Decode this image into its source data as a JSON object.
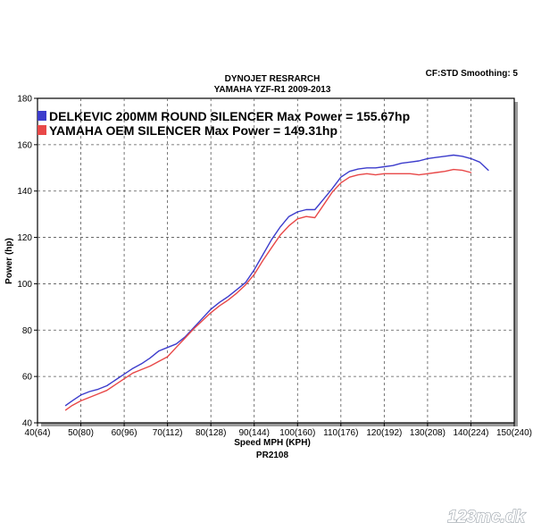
{
  "chart_data": {
    "type": "line",
    "title": [
      "DYNOJET RESRARCH",
      "YAMAHA YZF-R1 2009-2013"
    ],
    "header_right": "CF:STD Smoothing: 5",
    "xlabel": "Speed MPH (KPH)",
    "xlabel2": "PR2108",
    "ylabel": "Power (hp)",
    "xlim": [
      40,
      150
    ],
    "ylim": [
      40,
      180
    ],
    "x_ticks": [
      {
        "value": 40,
        "label": "40(64)"
      },
      {
        "value": 50,
        "label": "50(80)"
      },
      {
        "value": 60,
        "label": "60(96)"
      },
      {
        "value": 70,
        "label": "70(112)"
      },
      {
        "value": 80,
        "label": "80(128)"
      },
      {
        "value": 90,
        "label": "90(144)"
      },
      {
        "value": 100,
        "label": "100(160)"
      },
      {
        "value": 110,
        "label": "110(176)"
      },
      {
        "value": 120,
        "label": "120(192)"
      },
      {
        "value": 130,
        "label": "130(208)"
      },
      {
        "value": 140,
        "label": "140(224)"
      },
      {
        "value": 150,
        "label": "150(240)"
      }
    ],
    "y_ticks": [
      {
        "value": 40,
        "label": "40"
      },
      {
        "value": 60,
        "label": "60"
      },
      {
        "value": 80,
        "label": "80"
      },
      {
        "value": 100,
        "label": "100"
      },
      {
        "value": 120,
        "label": "120"
      },
      {
        "value": 140,
        "label": "140"
      },
      {
        "value": 160,
        "label": "160"
      },
      {
        "value": 180,
        "label": "180"
      }
    ],
    "grid": true,
    "legend_position": "top-left",
    "series": [
      {
        "name": "DELKEVIC 200MM ROUND SILENCER Max Power = 155.67hp",
        "color": "#3c3ccc",
        "x": [
          46.5,
          48,
          50,
          52,
          54,
          56,
          58,
          60,
          62,
          64,
          66,
          68,
          70,
          72,
          74,
          76,
          78,
          80,
          82,
          84,
          86,
          88,
          90,
          92,
          94,
          96,
          98,
          100,
          102,
          104,
          106,
          108,
          110,
          112,
          114,
          116,
          118,
          120,
          122,
          124,
          126,
          128,
          130,
          132,
          134,
          136,
          138,
          140,
          142,
          144
        ],
        "y": [
          47.5,
          49.5,
          52,
          53.5,
          54.5,
          56,
          58.5,
          61,
          63.5,
          65.5,
          68,
          71,
          72.5,
          74,
          77,
          81,
          85,
          89,
          92,
          94.5,
          97.5,
          100.5,
          106,
          112.5,
          119,
          124.5,
          129,
          131,
          132,
          132,
          136.5,
          141,
          146,
          148.5,
          149.5,
          150,
          150,
          150.5,
          151,
          152,
          152.5,
          153,
          154,
          154.5,
          155,
          155.5,
          155,
          154,
          152.5,
          149
        ]
      },
      {
        "name": "YAMAHA OEM SILENCER Max Power = 149.31hp",
        "color": "#e84848",
        "x": [
          46.5,
          48,
          50,
          52,
          54,
          56,
          58,
          60,
          62,
          64,
          66,
          68,
          70,
          72,
          74,
          76,
          78,
          80,
          82,
          84,
          86,
          88,
          90,
          92,
          94,
          96,
          98,
          100,
          102,
          104,
          106,
          108,
          110,
          112,
          114,
          116,
          118,
          120,
          122,
          124,
          126,
          128,
          130,
          132,
          134,
          136,
          138,
          140
        ],
        "y": [
          45.5,
          47.5,
          49.5,
          51,
          52.5,
          54,
          56.5,
          59,
          61.5,
          63,
          64.5,
          66.5,
          68.5,
          72.5,
          76.5,
          80.5,
          84,
          87.5,
          90.5,
          93,
          96,
          99.5,
          104,
          110,
          115.5,
          121,
          125,
          128,
          129,
          128.5,
          134,
          139.5,
          143.5,
          146,
          147,
          147.5,
          147,
          147.5,
          147.5,
          147.5,
          147.5,
          147,
          147.5,
          148,
          148.5,
          149.3,
          149,
          148
        ]
      }
    ]
  },
  "watermark": "123mc.dk"
}
